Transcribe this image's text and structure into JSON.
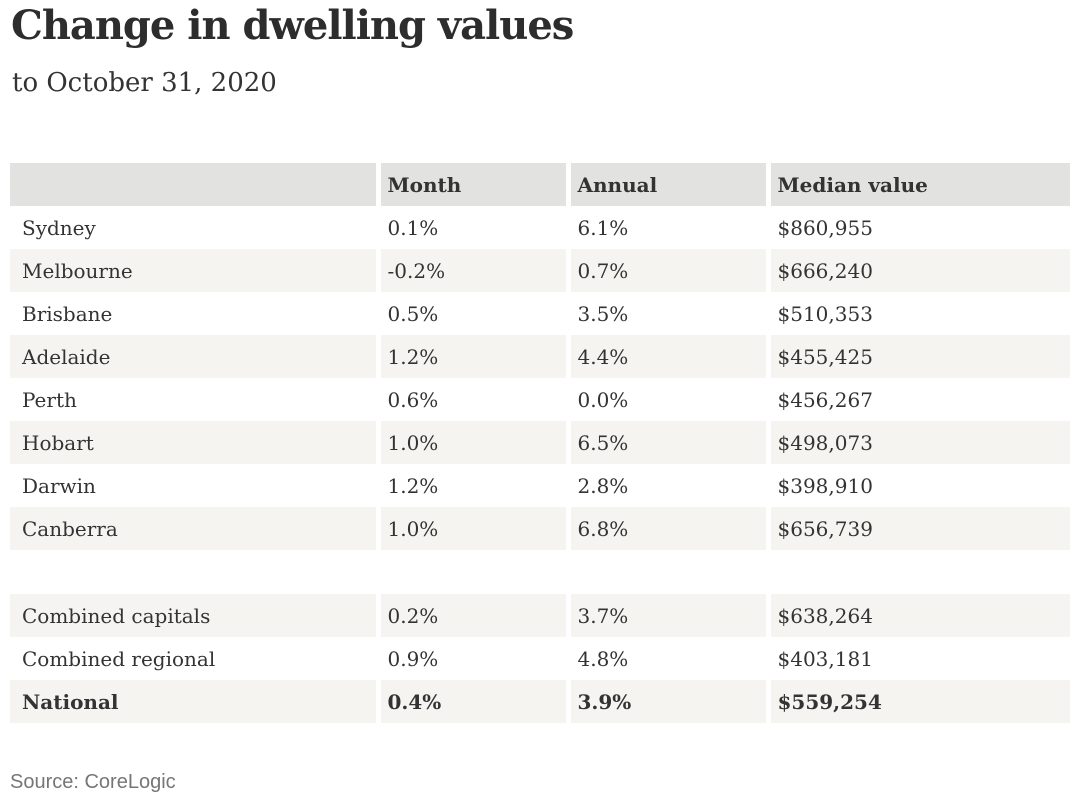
{
  "header": {
    "title": "Change in dwelling values",
    "subtitle": "to October 31, 2020"
  },
  "source_note": "Source: CoreLogic",
  "colors": {
    "header_bg": "#e2e2e1",
    "shaded_row_bg": "#f5f4f1",
    "body_text": "#333333",
    "title_text": "#2d2d2d",
    "source_text": "#767676",
    "page_bg": "#ffffff"
  },
  "chart_data": {
    "type": "table",
    "title": "Change in dwelling values",
    "subtitle": "to October 31, 2020",
    "source": "Source: CoreLogic",
    "columns": [
      "",
      "Month",
      "Annual",
      "Median value"
    ],
    "rows": [
      {
        "label": "Sydney",
        "month": "0.1%",
        "annual": "6.1%",
        "median_value": "$860,955"
      },
      {
        "label": "Melbourne",
        "month": "-0.2%",
        "annual": "0.7%",
        "median_value": "$666,240"
      },
      {
        "label": "Brisbane",
        "month": "0.5%",
        "annual": "3.5%",
        "median_value": "$510,353"
      },
      {
        "label": "Adelaide",
        "month": "1.2%",
        "annual": "4.4%",
        "median_value": "$455,425"
      },
      {
        "label": "Perth",
        "month": "0.6%",
        "annual": "0.0%",
        "median_value": "$456,267"
      },
      {
        "label": "Hobart",
        "month": "1.0%",
        "annual": "6.5%",
        "median_value": "$498,073"
      },
      {
        "label": "Darwin",
        "month": "1.2%",
        "annual": "2.8%",
        "median_value": "$398,910"
      },
      {
        "label": "Canberra",
        "month": "1.0%",
        "annual": "6.8%",
        "median_value": "$656,739"
      },
      {
        "label": "Combined capitals",
        "month": "0.2%",
        "annual": "3.7%",
        "median_value": "$638,264"
      },
      {
        "label": "Combined regional",
        "month": "0.9%",
        "annual": "4.8%",
        "median_value": "$403,181"
      },
      {
        "label": "National",
        "month": "0.4%",
        "annual": "3.9%",
        "median_value": "$559,254",
        "bold": true
      }
    ],
    "layout": {
      "sections": [
        [
          0,
          7
        ],
        [
          8,
          10
        ]
      ],
      "section_gap_after_row": 7,
      "zebra": "alternating, first data row white; summary section starts shaded",
      "grid": "off",
      "column_dividers": "white gaps"
    }
  }
}
